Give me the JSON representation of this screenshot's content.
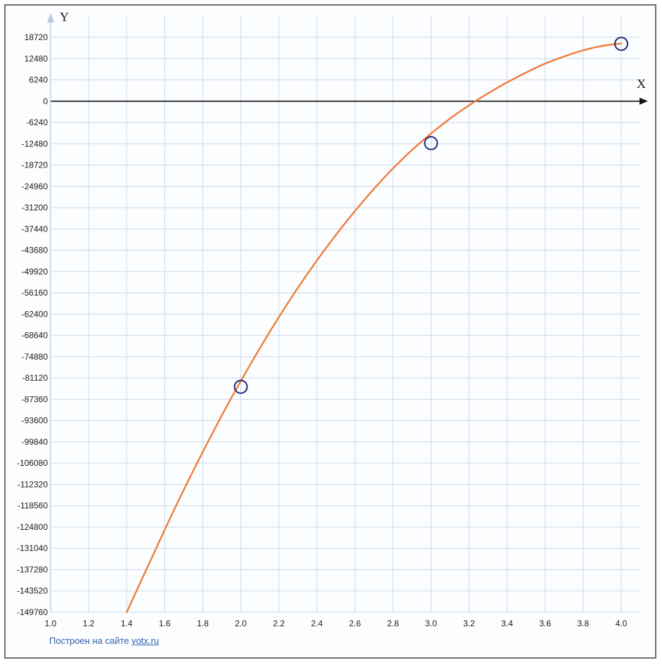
{
  "chart_data": {
    "type": "line",
    "xlabel": "X",
    "ylabel": "Y",
    "xlim": [
      1.0,
      4.0
    ],
    "ylim": [
      -149760,
      18720
    ],
    "x_ticks": [
      "1.0",
      "1.2",
      "1.4",
      "1.6",
      "1.8",
      "2.0",
      "2.2",
      "2.4",
      "2.6",
      "2.8",
      "3.0",
      "3.2",
      "3.4",
      "3.6",
      "3.8",
      "4.0"
    ],
    "y_ticks": [
      "18720",
      "12480",
      "6240",
      "0",
      "-6240",
      "-12480",
      "-18720",
      "-24960",
      "-31200",
      "-37440",
      "-43680",
      "-49920",
      "-56160",
      "-62400",
      "-68640",
      "-74880",
      "-81120",
      "-87360",
      "-93600",
      "-99840",
      "-106080",
      "-112320",
      "-118560",
      "-124800",
      "-131040",
      "-137280",
      "-143520",
      "-149760"
    ],
    "grid": true,
    "series": [
      {
        "color": "#ef7d3c",
        "x": [
          1.4,
          1.5,
          1.6,
          1.7,
          1.8,
          1.9,
          2.0,
          2.1,
          2.2,
          2.3,
          2.4,
          2.5,
          2.6,
          2.7,
          2.8,
          2.9,
          3.0,
          3.1,
          3.2,
          3.3,
          3.4,
          3.5,
          3.6,
          3.7,
          3.8,
          3.9,
          4.0
        ],
        "y": [
          -149760,
          -137700,
          -125600,
          -113900,
          -102800,
          -92100,
          -82000,
          -72400,
          -63300,
          -54700,
          -46700,
          -39200,
          -32200,
          -25700,
          -19700,
          -14300,
          -9500,
          -5100,
          -1200,
          2300,
          5500,
          8400,
          11000,
          13100,
          14900,
          16200,
          16900
        ]
      }
    ],
    "points": [
      {
        "x": 2.0,
        "y": -83700
      },
      {
        "x": 3.0,
        "y": -12300
      },
      {
        "x": 4.0,
        "y": 16800
      }
    ],
    "marker_color": "#1f2a80"
  },
  "footer": {
    "prefix": "Построен на сайте ",
    "link": "yotx.ru"
  }
}
